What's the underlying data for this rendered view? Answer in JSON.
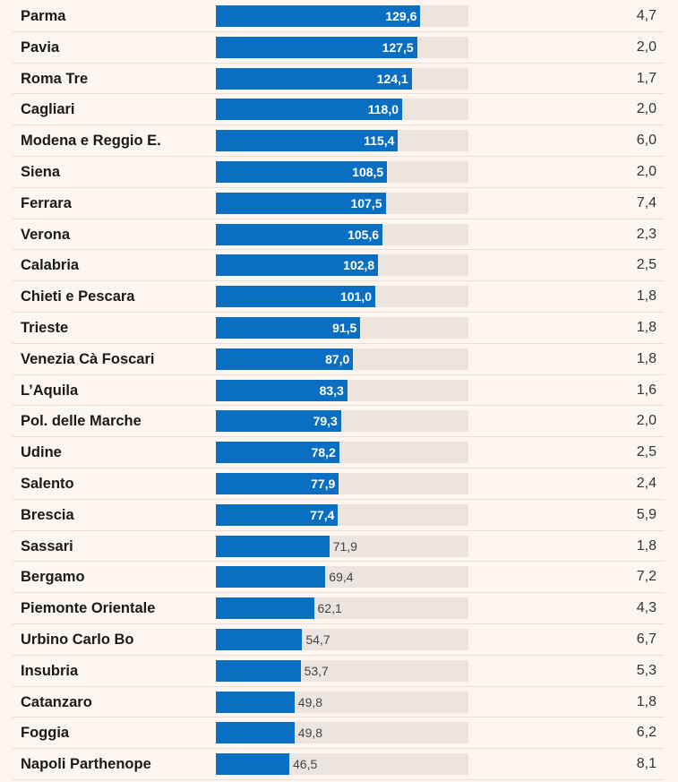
{
  "chart_data": {
    "type": "table",
    "xlim": [
      0,
      160
    ],
    "colors": {
      "bar": "#0a6fc2",
      "track": "#ece4df",
      "background": "#fdf6f0"
    },
    "rows": [
      {
        "name": "Parma",
        "bar_value": 129.6,
        "bar_label": "129,6",
        "second_value": "4,7"
      },
      {
        "name": "Pavia",
        "bar_value": 127.5,
        "bar_label": "127,5",
        "second_value": "2,0"
      },
      {
        "name": "Roma Tre",
        "bar_value": 124.1,
        "bar_label": "124,1",
        "second_value": "1,7"
      },
      {
        "name": "Cagliari",
        "bar_value": 118.0,
        "bar_label": "118,0",
        "second_value": "2,0"
      },
      {
        "name": "Modena e Reggio E.",
        "bar_value": 115.4,
        "bar_label": "115,4",
        "second_value": "6,0"
      },
      {
        "name": "Siena",
        "bar_value": 108.5,
        "bar_label": "108,5",
        "second_value": "2,0"
      },
      {
        "name": "Ferrara",
        "bar_value": 107.5,
        "bar_label": "107,5",
        "second_value": "7,4"
      },
      {
        "name": "Verona",
        "bar_value": 105.6,
        "bar_label": "105,6",
        "second_value": "2,3"
      },
      {
        "name": "Calabria",
        "bar_value": 102.8,
        "bar_label": "102,8",
        "second_value": "2,5"
      },
      {
        "name": "Chieti e Pescara",
        "bar_value": 101.0,
        "bar_label": "101,0",
        "second_value": "1,8"
      },
      {
        "name": "Trieste",
        "bar_value": 91.5,
        "bar_label": "91,5",
        "second_value": "1,8"
      },
      {
        "name": "Venezia Cà Foscari",
        "bar_value": 87.0,
        "bar_label": "87,0",
        "second_value": "1,8"
      },
      {
        "name": "L’Aquila",
        "bar_value": 83.3,
        "bar_label": "83,3",
        "second_value": "1,6"
      },
      {
        "name": "Pol. delle Marche",
        "bar_value": 79.3,
        "bar_label": "79,3",
        "second_value": "2,0"
      },
      {
        "name": "Udine",
        "bar_value": 78.2,
        "bar_label": "78,2",
        "second_value": "2,5"
      },
      {
        "name": "Salento",
        "bar_value": 77.9,
        "bar_label": "77,9",
        "second_value": "2,4"
      },
      {
        "name": "Brescia",
        "bar_value": 77.4,
        "bar_label": "77,4",
        "second_value": "5,9"
      },
      {
        "name": "Sassari",
        "bar_value": 71.9,
        "bar_label": "71,9",
        "second_value": "1,8"
      },
      {
        "name": "Bergamo",
        "bar_value": 69.4,
        "bar_label": "69,4",
        "second_value": "7,2"
      },
      {
        "name": "Piemonte Orientale",
        "bar_value": 62.1,
        "bar_label": "62,1",
        "second_value": "4,3"
      },
      {
        "name": "Urbino Carlo Bo",
        "bar_value": 54.7,
        "bar_label": "54,7",
        "second_value": "6,7"
      },
      {
        "name": "Insubria",
        "bar_value": 53.7,
        "bar_label": "53,7",
        "second_value": "5,3"
      },
      {
        "name": "Catanzaro",
        "bar_value": 49.8,
        "bar_label": "49,8",
        "second_value": "1,8"
      },
      {
        "name": "Foggia",
        "bar_value": 49.8,
        "bar_label": "49,8",
        "second_value": "6,2"
      },
      {
        "name": "Napoli Parthenope",
        "bar_value": 46.5,
        "bar_label": "46,5",
        "second_value": "8,1"
      }
    ]
  }
}
